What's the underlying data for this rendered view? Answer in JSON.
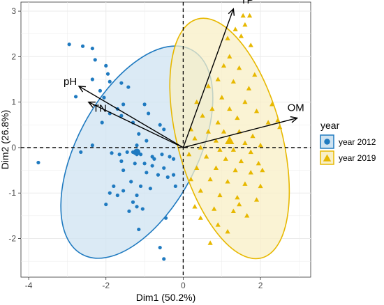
{
  "chart_data": {
    "type": "scatter",
    "xlabel": "Dim1 (50.2%)",
    "ylabel": "Dim2 (26.8%)",
    "xlim": [
      -4.2,
      3.3
    ],
    "ylim": [
      -2.85,
      3.2
    ],
    "xticks": [
      -4,
      -2,
      0,
      2
    ],
    "yticks": [
      -2,
      -1,
      0,
      1,
      2,
      3
    ],
    "grid": true,
    "legend": {
      "title": "year",
      "position": "right",
      "entries": [
        "year 2012",
        "year 2019"
      ]
    },
    "colors": {
      "year 2012": "#1f7ac0",
      "year 2019": "#e7b800",
      "ellipse_2012_fill": "#cfe3f1",
      "ellipse_2019_fill": "#f8efc6",
      "panel": "#ebebeb"
    },
    "series": [
      {
        "name": "year 2012",
        "marker": "circle",
        "mean": [
          -1.2,
          -0.1
        ],
        "ellipse": {
          "center": [
            -1.2,
            -0.1
          ],
          "rx": 1.55,
          "ry": 2.55,
          "angle_deg": 28
        },
        "points": [
          [
            -3.75,
            -0.33
          ],
          [
            -2.95,
            2.27
          ],
          [
            -2.6,
            2.23
          ],
          [
            -2.35,
            2.18
          ],
          [
            -2.28,
            1.93
          ],
          [
            -2.0,
            1.8
          ],
          [
            -1.95,
            1.62
          ],
          [
            -1.9,
            1.45
          ],
          [
            -2.35,
            1.5
          ],
          [
            -2.78,
            1.12
          ],
          [
            -2.15,
            1.25
          ],
          [
            -1.6,
            1.42
          ],
          [
            -1.42,
            1.33
          ],
          [
            -2.05,
            1.1
          ],
          [
            -1.55,
            0.95
          ],
          [
            -1.7,
            0.85
          ],
          [
            -1.9,
            0.75
          ],
          [
            -1.6,
            0.7
          ],
          [
            -2.1,
            0.55
          ],
          [
            -1.0,
            0.95
          ],
          [
            -0.9,
            0.75
          ],
          [
            -1.3,
            0.55
          ],
          [
            -0.6,
            0.5
          ],
          [
            -0.5,
            0.4
          ],
          [
            -1.15,
            0.3
          ],
          [
            -0.95,
            0.15
          ],
          [
            -1.2,
            0.05
          ],
          [
            -2.35,
            0.05
          ],
          [
            -2.65,
            -0.1
          ],
          [
            -1.85,
            -0.12
          ],
          [
            -1.65,
            -0.15
          ],
          [
            -1.45,
            -0.1
          ],
          [
            -1.3,
            -0.1
          ],
          [
            -1.25,
            -0.12
          ],
          [
            -1.2,
            -0.15
          ],
          [
            -1.1,
            -0.15
          ],
          [
            -0.8,
            -0.2
          ],
          [
            -0.55,
            -0.15
          ],
          [
            -0.35,
            -0.2
          ],
          [
            -0.25,
            -0.25
          ],
          [
            -1.6,
            -0.3
          ],
          [
            -1.25,
            -0.35
          ],
          [
            -1.0,
            -0.35
          ],
          [
            -0.8,
            -0.4
          ],
          [
            -0.5,
            -0.45
          ],
          [
            -1.55,
            -0.5
          ],
          [
            -0.95,
            -0.55
          ],
          [
            -0.65,
            -0.6
          ],
          [
            -0.4,
            -0.65
          ],
          [
            -0.25,
            -0.6
          ],
          [
            -1.8,
            -0.85
          ],
          [
            -1.55,
            -0.95
          ],
          [
            -1.35,
            -0.75
          ],
          [
            -1.1,
            -0.85
          ],
          [
            -0.85,
            -0.9
          ],
          [
            -1.9,
            -1.0
          ],
          [
            -1.7,
            -1.05
          ],
          [
            -1.2,
            -1.05
          ],
          [
            -1.3,
            -1.2
          ],
          [
            -1.2,
            -1.3
          ],
          [
            -1.05,
            -1.35
          ],
          [
            -1.4,
            -1.4
          ],
          [
            -0.45,
            -1.55
          ],
          [
            -1.15,
            -1.8
          ],
          [
            -0.6,
            -2.2
          ],
          [
            -0.5,
            -2.45
          ],
          [
            -2.0,
            -1.25
          ],
          [
            -0.2,
            -0.85
          ],
          [
            -0.75,
            -0.25
          ]
        ]
      },
      {
        "name": "year 2019",
        "marker": "triangle",
        "mean": [
          1.2,
          0.15
        ],
        "ellipse": {
          "center": [
            1.2,
            0.2
          ],
          "rx": 1.35,
          "ry": 2.72,
          "angle_deg": -15
        },
        "points": [
          [
            1.55,
            2.9
          ],
          [
            1.72,
            2.9
          ],
          [
            1.6,
            2.7
          ],
          [
            1.35,
            2.6
          ],
          [
            1.15,
            2.4
          ],
          [
            1.5,
            2.45
          ],
          [
            1.75,
            2.25
          ],
          [
            1.2,
            2.0
          ],
          [
            1.05,
            1.8
          ],
          [
            1.45,
            1.75
          ],
          [
            1.85,
            1.6
          ],
          [
            0.9,
            1.5
          ],
          [
            1.3,
            1.45
          ],
          [
            1.7,
            1.3
          ],
          [
            0.65,
            1.35
          ],
          [
            1.0,
            1.1
          ],
          [
            1.6,
            1.0
          ],
          [
            0.35,
            1.0
          ],
          [
            2.3,
            0.95
          ],
          [
            0.75,
            0.85
          ],
          [
            1.2,
            0.85
          ],
          [
            1.9,
            0.8
          ],
          [
            0.5,
            0.7
          ],
          [
            1.4,
            0.65
          ],
          [
            0.9,
            0.55
          ],
          [
            2.2,
            0.55
          ],
          [
            2.5,
            0.45
          ],
          [
            2.45,
            0.6
          ],
          [
            0.2,
            0.4
          ],
          [
            0.65,
            0.35
          ],
          [
            1.05,
            0.35
          ],
          [
            1.45,
            0.35
          ],
          [
            1.8,
            0.25
          ],
          [
            0.3,
            0.2
          ],
          [
            0.85,
            0.15
          ],
          [
            1.2,
            0.15
          ],
          [
            1.6,
            0.1
          ],
          [
            2.0,
            0.05
          ],
          [
            0.45,
            0.0
          ],
          [
            0.95,
            -0.05
          ],
          [
            1.3,
            -0.05
          ],
          [
            1.75,
            -0.1
          ],
          [
            0.15,
            -0.15
          ],
          [
            0.6,
            -0.2
          ],
          [
            1.1,
            -0.25
          ],
          [
            1.5,
            -0.3
          ],
          [
            1.95,
            -0.35
          ],
          [
            0.35,
            -0.45
          ],
          [
            0.85,
            -0.45
          ],
          [
            1.35,
            -0.5
          ],
          [
            1.75,
            -0.55
          ],
          [
            0.2,
            -0.7
          ],
          [
            0.7,
            -0.7
          ],
          [
            1.15,
            -0.75
          ],
          [
            1.6,
            -0.8
          ],
          [
            2.0,
            -0.85
          ],
          [
            0.45,
            -0.95
          ],
          [
            0.95,
            -1.05
          ],
          [
            1.4,
            -1.1
          ],
          [
            1.9,
            -1.15
          ],
          [
            0.3,
            -1.3
          ],
          [
            0.8,
            -1.35
          ],
          [
            1.3,
            -1.4
          ],
          [
            1.65,
            -1.5
          ],
          [
            0.45,
            -1.55
          ],
          [
            0.9,
            -1.7
          ],
          [
            1.15,
            -1.85
          ],
          [
            0.7,
            -2.1
          ],
          [
            1.45,
            -1.25
          ],
          [
            2.05,
            -0.5
          ]
        ]
      }
    ],
    "arrows": [
      {
        "label": "TP",
        "x": 1.3,
        "y": 3.05
      },
      {
        "label": "OM",
        "x": 2.95,
        "y": 0.65
      },
      {
        "label": "pH",
        "x": -2.7,
        "y": 1.35
      },
      {
        "label": "TN",
        "x": -2.45,
        "y": 1.0
      }
    ]
  }
}
